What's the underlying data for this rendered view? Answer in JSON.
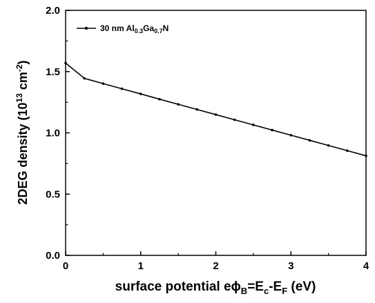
{
  "chart_data": {
    "type": "line",
    "xlim": [
      0,
      4
    ],
    "ylim": [
      0,
      2.0
    ],
    "x_ticks": [
      "0",
      "1",
      "2",
      "3",
      "4"
    ],
    "y_ticks": [
      "0.0",
      "0.5",
      "1.0",
      "1.5",
      "2.0"
    ],
    "xlabel": {
      "lead": "surface potential  e",
      "phi": "ϕ",
      "sub_b": "B",
      "eq": "=E",
      "sub_c": "c",
      "minus": "-E",
      "sub_f": "F",
      "tail": " (eV)"
    },
    "ylabel": {
      "lead": "2DEG density (10",
      "sup1": "13",
      "mid": " cm",
      "sup2": "-2",
      "tail": ")"
    },
    "grid": false,
    "legend_position": "top-left",
    "series": [
      {
        "legend": {
          "lead": "30 nm Al",
          "sub1": "0.3",
          "mid": "Ga",
          "sub2": "0.7",
          "tail": "N"
        },
        "color": "#000000",
        "x": [
          0,
          0.25,
          0.5,
          0.75,
          1.0,
          1.25,
          1.5,
          1.75,
          2.0,
          2.25,
          2.5,
          2.75,
          3.0,
          3.25,
          3.5,
          3.75,
          4.0
        ],
        "y": [
          1.57,
          1.445,
          1.402,
          1.36,
          1.318,
          1.275,
          1.233,
          1.191,
          1.149,
          1.107,
          1.065,
          1.023,
          0.981,
          0.939,
          0.897,
          0.855,
          0.813
        ]
      }
    ]
  }
}
